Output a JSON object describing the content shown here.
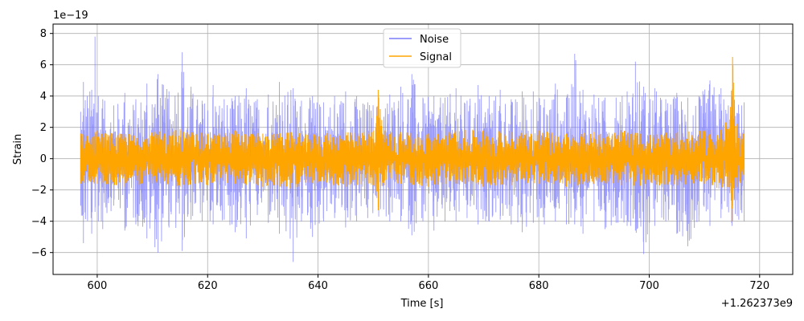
{
  "chart_data": {
    "type": "line",
    "title": "",
    "xlabel": "Time [s]",
    "ylabel": "Strain",
    "x_offset_label": "+1.262373e9",
    "y_scale_label": "1e−19",
    "xlim": [
      592,
      726
    ],
    "ylim": [
      -7.4,
      8.6
    ],
    "x_range": [
      597,
      717.2
    ],
    "x_ticks": [
      600,
      620,
      640,
      660,
      680,
      700,
      720
    ],
    "x_tick_labels": [
      "600",
      "620",
      "640",
      "660",
      "680",
      "700",
      "720"
    ],
    "y_ticks": [
      -6,
      -4,
      -2,
      0,
      2,
      4,
      6,
      8
    ],
    "y_tick_labels": [
      "−6",
      "−4",
      "−2",
      "0",
      "2",
      "4",
      "6",
      "8"
    ],
    "grid": true,
    "legend_position": "top-center",
    "series": [
      {
        "name": "Noise",
        "color": "#7b7bfa",
        "opacity": 0.75,
        "envelope": [
          [
            597,
            3.0,
            -3.0
          ],
          [
            597.5,
            4.9,
            -5.4
          ],
          [
            599,
            4.4,
            -4.8
          ],
          [
            599.6,
            7.8,
            -3.4
          ],
          [
            600.2,
            4.0,
            -4.0
          ],
          [
            601,
            3.8,
            -4.5
          ],
          [
            603,
            3.4,
            -3.0
          ],
          [
            605,
            4.2,
            -4.6
          ],
          [
            607,
            3.8,
            -4.2
          ],
          [
            609,
            4.8,
            -5.1
          ],
          [
            611,
            5.4,
            -6.0
          ],
          [
            613,
            4.3,
            -4.4
          ],
          [
            615.4,
            6.8,
            -5.9
          ],
          [
            617,
            4.6,
            -3.9
          ],
          [
            619,
            3.7,
            -4.0
          ],
          [
            621,
            4.7,
            -4.2
          ],
          [
            623,
            3.8,
            -3.9
          ],
          [
            625,
            4.0,
            -4.7
          ],
          [
            627,
            4.5,
            -5.1
          ],
          [
            629,
            3.8,
            -3.6
          ],
          [
            631,
            4.1,
            -4.1
          ],
          [
            633,
            4.9,
            -4.8
          ],
          [
            635.5,
            4.5,
            -6.6
          ],
          [
            637,
            3.7,
            -4.0
          ],
          [
            639,
            4.0,
            -5.0
          ],
          [
            641,
            3.6,
            -4.0
          ],
          [
            643,
            4.0,
            -3.8
          ],
          [
            645,
            4.3,
            -4.4
          ],
          [
            647,
            4.0,
            -4.0
          ],
          [
            649,
            3.6,
            -3.8
          ],
          [
            651,
            3.9,
            -3.7
          ],
          [
            653,
            4.1,
            -4.0
          ],
          [
            655,
            4.6,
            -4.0
          ],
          [
            657,
            5.4,
            -4.9
          ],
          [
            659,
            3.9,
            -4.0
          ],
          [
            661,
            4.0,
            -4.6
          ],
          [
            663,
            3.9,
            -4.0
          ],
          [
            665,
            4.5,
            -4.0
          ],
          [
            667,
            3.7,
            -3.8
          ],
          [
            669,
            4.7,
            -4.2
          ],
          [
            671,
            4.0,
            -4.0
          ],
          [
            673,
            4.4,
            -3.9
          ],
          [
            675,
            3.8,
            -4.2
          ],
          [
            677,
            4.3,
            -4.7
          ],
          [
            679,
            4.3,
            -4.1
          ],
          [
            681,
            3.8,
            -4.2
          ],
          [
            683,
            4.8,
            -4.0
          ],
          [
            685,
            3.9,
            -4.2
          ],
          [
            686.5,
            6.7,
            -4.2
          ],
          [
            688,
            4.4,
            -4.8
          ],
          [
            690,
            4.1,
            -4.0
          ],
          [
            692,
            3.9,
            -4.5
          ],
          [
            694,
            3.9,
            -4.1
          ],
          [
            696,
            4.3,
            -4.3
          ],
          [
            697.5,
            6.2,
            -4.6
          ],
          [
            699,
            4.6,
            -6.1
          ],
          [
            701,
            4.5,
            -4.3
          ],
          [
            703,
            3.8,
            -4.0
          ],
          [
            705,
            4.2,
            -4.8
          ],
          [
            707,
            3.9,
            -5.6
          ],
          [
            709,
            4.0,
            -4.0
          ],
          [
            711,
            5.0,
            -4.3
          ],
          [
            713,
            4.5,
            -3.8
          ],
          [
            715,
            4.0,
            -4.3
          ],
          [
            717.2,
            3.6,
            -4.0
          ]
        ]
      },
      {
        "name": "Signal",
        "color": "#ffa500",
        "opacity": 1,
        "envelope": [
          [
            597,
            1.6,
            -1.6
          ],
          [
            600,
            1.8,
            -1.6
          ],
          [
            605,
            1.6,
            -1.8
          ],
          [
            610,
            1.7,
            -1.6
          ],
          [
            615,
            1.9,
            -1.8
          ],
          [
            620,
            1.6,
            -1.7
          ],
          [
            625,
            1.8,
            -1.6
          ],
          [
            630,
            1.6,
            -1.8
          ],
          [
            635,
            1.7,
            -1.9
          ],
          [
            640,
            1.6,
            -1.6
          ],
          [
            645,
            1.7,
            -1.8
          ],
          [
            650,
            1.8,
            -1.7
          ],
          [
            650.9,
            4.4,
            -3.3
          ],
          [
            652,
            1.8,
            -1.7
          ],
          [
            655,
            1.7,
            -1.6
          ],
          [
            660,
            1.6,
            -1.8
          ],
          [
            665,
            1.8,
            -1.6
          ],
          [
            670,
            1.9,
            -1.8
          ],
          [
            675,
            1.7,
            -1.7
          ],
          [
            680,
            1.8,
            -1.6
          ],
          [
            685,
            1.6,
            -1.8
          ],
          [
            690,
            1.7,
            -1.6
          ],
          [
            695,
            1.8,
            -1.7
          ],
          [
            700,
            1.6,
            -1.8
          ],
          [
            705,
            1.7,
            -1.7
          ],
          [
            710,
            1.8,
            -1.6
          ],
          [
            714.6,
            2.5,
            -2.2
          ],
          [
            715.1,
            6.5,
            -4.0
          ],
          [
            716,
            2.0,
            -1.8
          ],
          [
            717.2,
            1.7,
            -1.6
          ]
        ]
      }
    ]
  }
}
